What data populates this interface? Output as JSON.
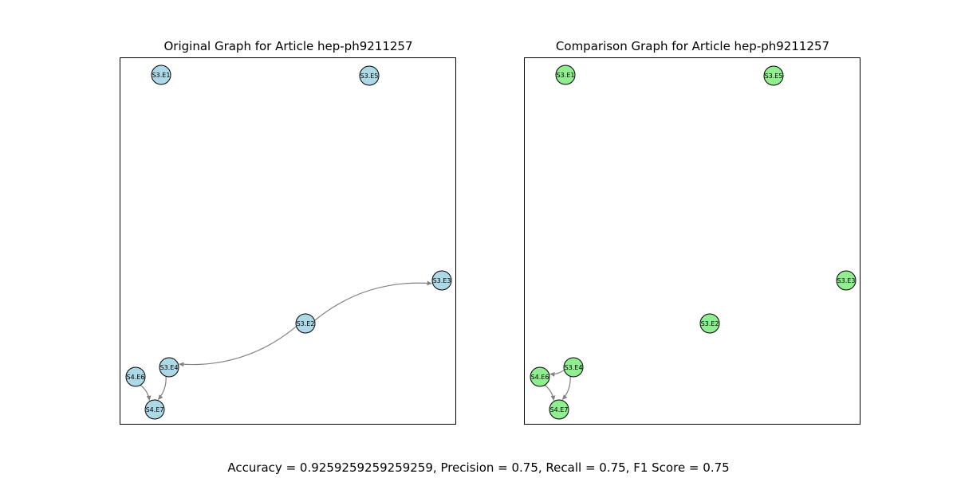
{
  "figure": {
    "metrics_text": "Accuracy = 0.9259259259259259, Precision = 0.75, Recall = 0.75, F1 Score = 0.75"
  },
  "panels": [
    {
      "id": "original",
      "title": "Original Graph for Article hep-ph9211257",
      "node_color": "#add8e6",
      "edge_color": "#808080",
      "nodes": [
        {
          "id": "S3.E1",
          "label": "S3.E1"
        },
        {
          "id": "S3.E5",
          "label": "S3.E5"
        },
        {
          "id": "S3.E3",
          "label": "S3.E3"
        },
        {
          "id": "S3.E2",
          "label": "S3.E2"
        },
        {
          "id": "S3.E4",
          "label": "S3.E4"
        },
        {
          "id": "S4.E6",
          "label": "S4.E6"
        },
        {
          "id": "S4.E7",
          "label": "S4.E7"
        }
      ],
      "edges": [
        {
          "source": "S3.E2",
          "target": "S3.E3"
        },
        {
          "source": "S3.E2",
          "target": "S3.E4"
        },
        {
          "source": "S3.E4",
          "target": "S4.E7"
        },
        {
          "source": "S4.E6",
          "target": "S4.E7"
        }
      ]
    },
    {
      "id": "comparison",
      "title": "Comparison Graph for Article hep-ph9211257",
      "node_color": "#90ee90",
      "edge_color": "#808080",
      "nodes": [
        {
          "id": "S3.E1",
          "label": "S3.E1"
        },
        {
          "id": "S3.E5",
          "label": "S3.E5"
        },
        {
          "id": "S3.E3",
          "label": "S3.E3"
        },
        {
          "id": "S3.E2",
          "label": "S3.E2"
        },
        {
          "id": "S3.E4",
          "label": "S3.E4"
        },
        {
          "id": "S4.E6",
          "label": "S4.E6"
        },
        {
          "id": "S4.E7",
          "label": "S4.E7"
        }
      ],
      "edges": [
        {
          "source": "S3.E4",
          "target": "S4.E6"
        },
        {
          "source": "S3.E4",
          "target": "S4.E7"
        },
        {
          "source": "S4.E6",
          "target": "S4.E7"
        }
      ]
    }
  ]
}
